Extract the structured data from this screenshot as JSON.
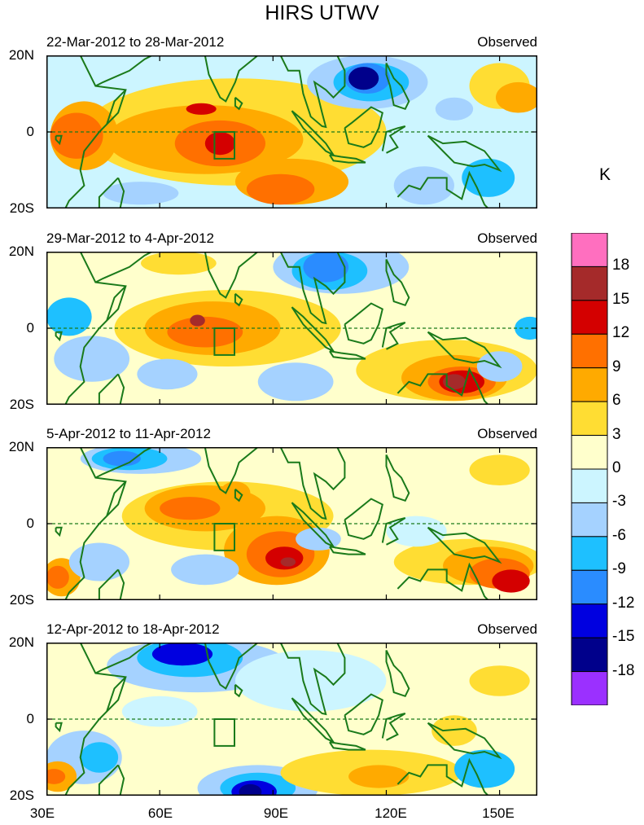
{
  "title": "HIRS UTWV",
  "unit": "K",
  "lat_ticks": [
    "20N",
    "0",
    "20S"
  ],
  "lon_ticks": [
    "30E",
    "60E",
    "90E",
    "120E",
    "150E"
  ],
  "panels": [
    {
      "period": "22-Mar-2012 to 28-Mar-2012",
      "tag": "Observed"
    },
    {
      "period": "29-Mar-2012 to 4-Apr-2012",
      "tag": "Observed"
    },
    {
      "period": "5-Apr-2012 to 11-Apr-2012",
      "tag": "Observed"
    },
    {
      "period": "12-Apr-2012 to 18-Apr-2012",
      "tag": "Observed"
    }
  ],
  "colorbar": {
    "labels": [
      "18",
      "15",
      "12",
      "9",
      "6",
      "3",
      "0",
      "-3",
      "-6",
      "-9",
      "-12",
      "-15",
      "-18"
    ],
    "colors": [
      "#ff6fbf",
      "#a52a2a",
      "#d40000",
      "#ff7000",
      "#ffaa00",
      "#ffdd33",
      "#ffffcc",
      "#ccf5ff",
      "#a5d2ff",
      "#1ec0ff",
      "#2a8cff",
      "#0000e0",
      "#00008b",
      "#9b30ff"
    ]
  },
  "styles": {
    "coast": "#1a7a1a",
    "equator": "#1a7a1a"
  }
}
